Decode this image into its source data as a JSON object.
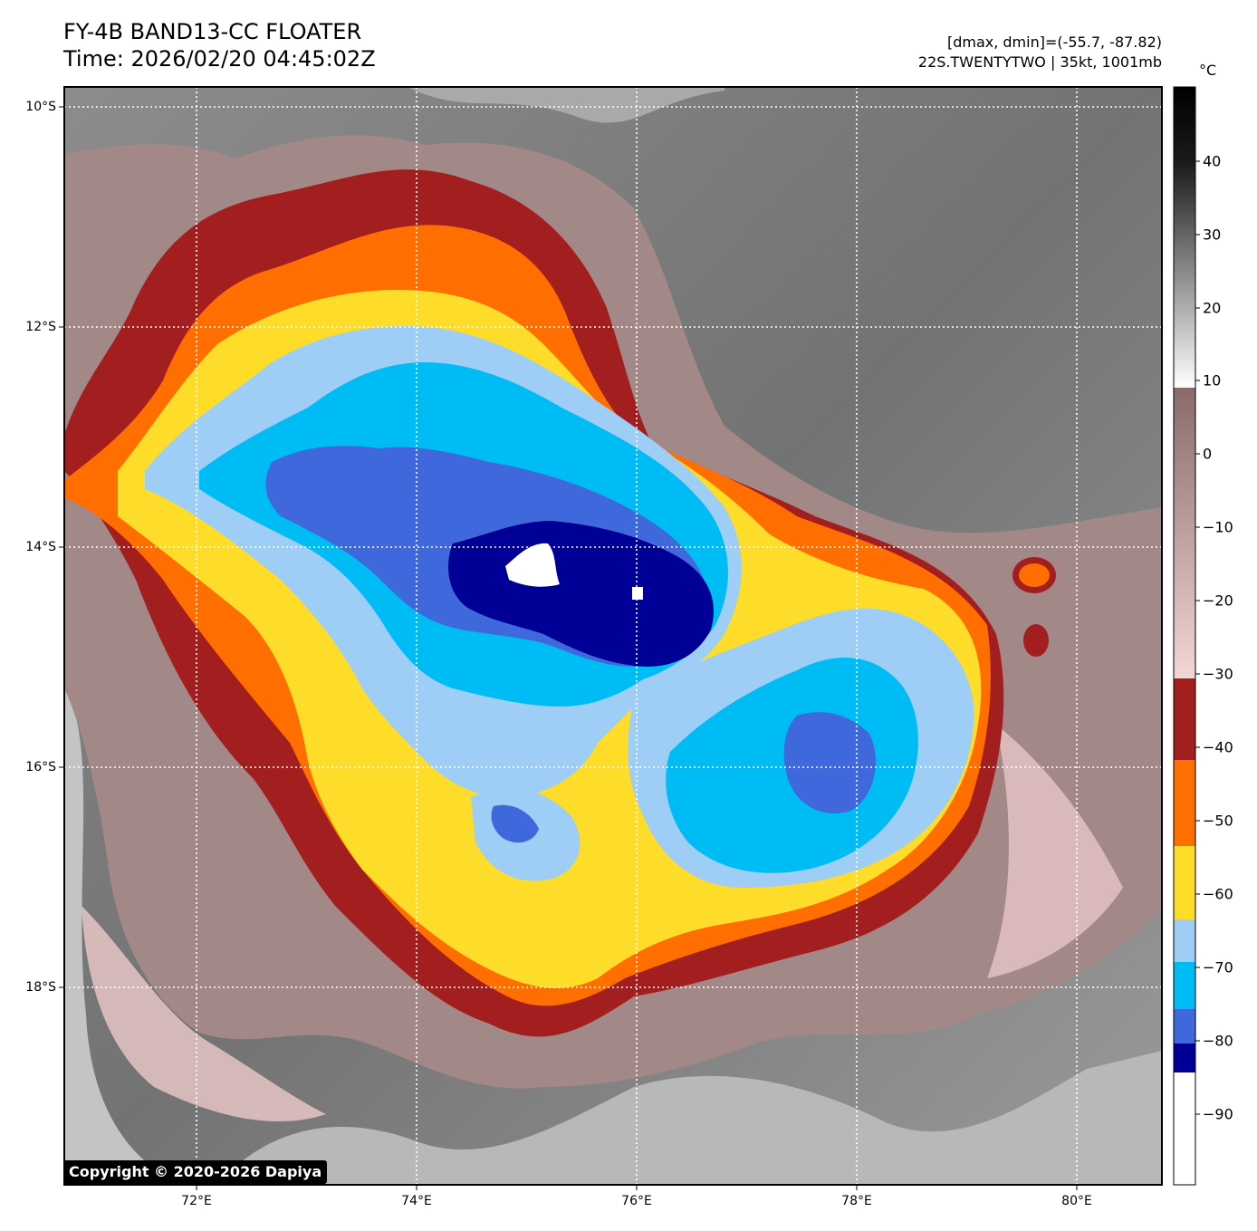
{
  "title": {
    "line1": "FY-4B BAND13-CC FLOATER",
    "line2": "Time: 2026/02/20 04:45:02Z"
  },
  "info": {
    "range": "[dmax, dmin]=(-55.7, -87.82)",
    "storm": "22S.TWENTYTWO | 35kt, 1001mb"
  },
  "unit": "°C",
  "lat_labels": [
    "10°S",
    "12°S",
    "14°S",
    "16°S",
    "18°S"
  ],
  "lon_labels": [
    "72°E",
    "74°E",
    "76°E",
    "78°E",
    "80°E"
  ],
  "colorbar": {
    "ticks": [
      "40",
      "30",
      "20",
      "10",
      "0",
      "−10",
      "−20",
      "−30",
      "−40",
      "−50",
      "−60",
      "−70",
      "−80",
      "−90"
    ],
    "colors": {
      "warm_black": "#000000",
      "warm_white": "#ffffff",
      "brown_top": "#8a6a6a",
      "brown_bottom": "#f3d6d6",
      "dark_red": "#a31f1f",
      "orange": "#ff6e00",
      "yellow": "#fddd2a",
      "light_blue": "#9ecdf6",
      "cyan": "#00bcf5",
      "royal_blue": "#3f68dc",
      "navy": "#000097",
      "cold_white": "#ffffff"
    }
  },
  "image_colors": {
    "gray_cloud": "#6a6a6a",
    "light_gray": "#bdbdbd",
    "mauve": "#a38888",
    "pink": "#e6c6c6"
  },
  "copyright": "Copyright © 2020-2026 Dapiya"
}
